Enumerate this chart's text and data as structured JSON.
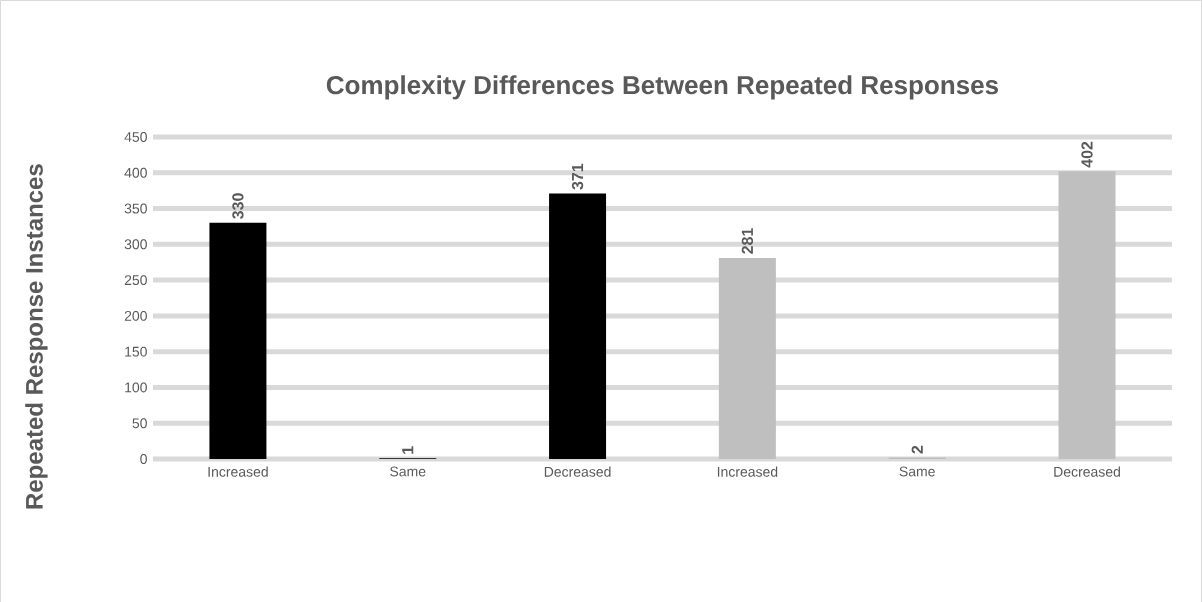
{
  "chart_data": {
    "type": "bar",
    "title": "Complexity Differences Between Repeated Responses",
    "ylabel": "Repeated Response Instances",
    "categories": [
      "Increased",
      "Same",
      "Decreased",
      "Increased",
      "Same",
      "Decreased"
    ],
    "values": [
      330,
      1,
      371,
      281,
      2,
      402
    ],
    "colors": [
      "#000000",
      "#000000",
      "#000000",
      "#bfbfbf",
      "#bfbfbf",
      "#bfbfbf"
    ],
    "ylim": [
      0,
      450
    ],
    "yticks": [
      0,
      50,
      100,
      150,
      200,
      250,
      300,
      350,
      400,
      450
    ],
    "grid": "y",
    "data_labels": true
  }
}
